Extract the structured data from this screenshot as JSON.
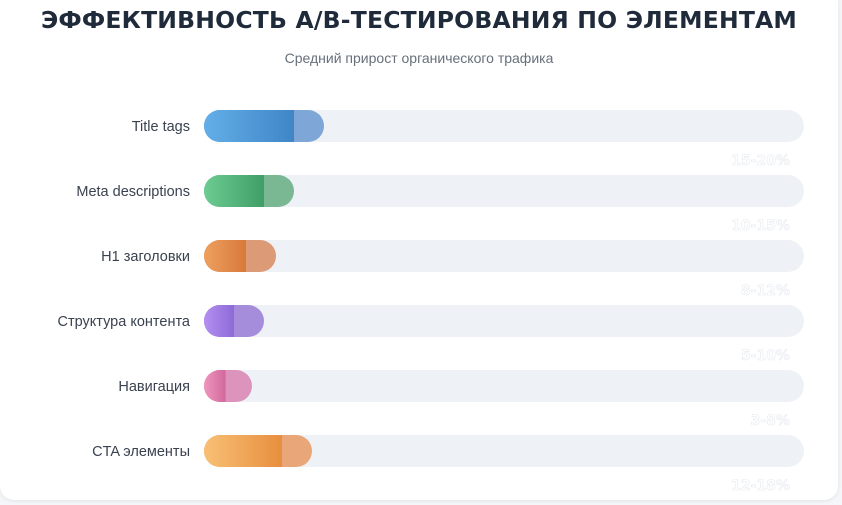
{
  "chart_data": {
    "type": "bar",
    "orientation": "horizontal",
    "title": "ЭФФЕКТИВНОСТЬ A/B-ТЕСТИРОВАНИЯ ПО ЭЛЕМЕНТАМ",
    "subtitle": "Средний прирост органического трафика",
    "categories": [
      "Title tags",
      "Meta descriptions",
      "H1 заголовки",
      "Структура контента",
      "Навигация",
      "CTA элементы"
    ],
    "value_labels": [
      "15-20%",
      "10-15%",
      "8-12%",
      "5-10%",
      "3-8%",
      "12-18%"
    ],
    "ranges": [
      [
        15,
        20
      ],
      [
        10,
        15
      ],
      [
        8,
        12
      ],
      [
        5,
        10
      ],
      [
        3,
        8
      ],
      [
        12,
        18
      ]
    ],
    "xlim": [
      0,
      100
    ],
    "grid": false,
    "colors": [
      {
        "start": "#63aee8",
        "end": "#3f86c7",
        "cap": "#7ea6d6"
      },
      {
        "start": "#6dcc92",
        "end": "#3f9e66",
        "cap": "#79b893"
      },
      {
        "start": "#eea060",
        "end": "#d8793a",
        "cap": "#dc9b76"
      },
      {
        "start": "#b490f0",
        "end": "#8d6ad8",
        "cap": "#a58ddc"
      },
      {
        "start": "#ef96bd",
        "end": "#d2689c",
        "cap": "#dc94bc"
      },
      {
        "start": "#f8c075",
        "end": "#e88e3e",
        "cap": "#e9a678"
      }
    ],
    "track_color": "#eef2f6"
  }
}
